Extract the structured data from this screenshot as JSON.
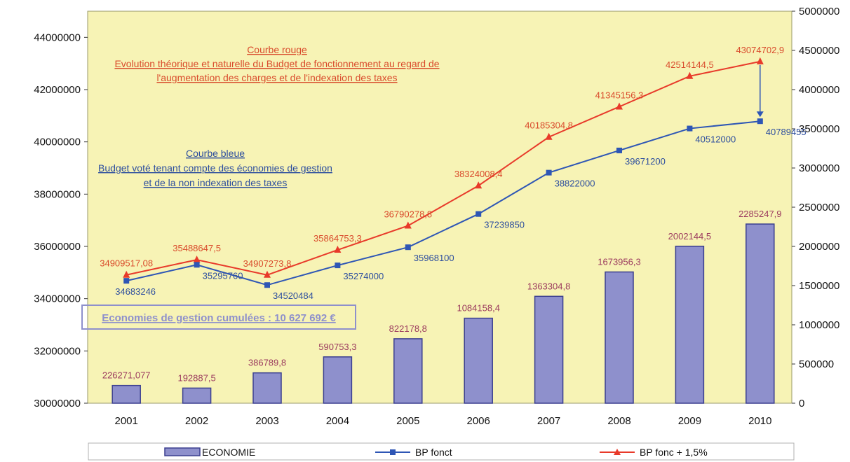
{
  "colors": {
    "plot_bg": "#f7f3b5",
    "bar_fill": "#8e90cc",
    "bar_stroke": "#3b3f8f",
    "blue_line": "#2e56b5",
    "red_line": "#e83a2a",
    "red_text": "#d94b2c",
    "bar_label": "#9b3a5e",
    "blue_label": "#2d4e9e",
    "annotation_box": "#8e90cc"
  },
  "annotations": {
    "red_title": "Courbe rouge",
    "red_line1": "Evolution théorique et naturelle du Budget de fonctionnement au regard de",
    "red_line2": "l'augmentation des charges et de l'indexation des taxes",
    "blue_title": "Courbe bleue",
    "blue_line1": "Budget voté tenant compte des économies de gestion",
    "blue_line2": "et de la non indexation des taxes",
    "box_text": "Economies de gestion cumulées : 10 627 692 €"
  },
  "chart_data": {
    "type": "bar",
    "categories": [
      "2001",
      "2002",
      "2003",
      "2004",
      "2005",
      "2006",
      "2007",
      "2008",
      "2009",
      "2010"
    ],
    "left_axis": {
      "range": [
        30000000,
        45000000
      ],
      "ticks": [
        "30000000",
        "32000000",
        "34000000",
        "36000000",
        "38000000",
        "40000000",
        "42000000",
        "44000000"
      ]
    },
    "right_axis": {
      "range": [
        0,
        5000000
      ],
      "ticks": [
        "0",
        "500000",
        "1000000",
        "1500000",
        "2000000",
        "2500000",
        "3000000",
        "3500000",
        "4000000",
        "4500000",
        "5000000"
      ]
    },
    "series": [
      {
        "name": "ECONOMIE",
        "type": "bar",
        "axis": "right",
        "values": [
          226271.077,
          192887.5,
          386789.8,
          590753.3,
          822178.8,
          1084158.4,
          1363304.8,
          1673956.3,
          2002144.5,
          2285247.9
        ],
        "labels": [
          "226271,077",
          "192887,5",
          "386789,8",
          "590753,3",
          "822178,8",
          "1084158,4",
          "1363304,8",
          "1673956,3",
          "2002144,5",
          "2285247,9"
        ]
      },
      {
        "name": "BP fonct",
        "type": "line",
        "axis": "left",
        "marker": "square",
        "values": [
          34683246,
          35295760,
          34520484,
          35274000,
          35968100,
          37239850,
          38822000,
          39671200,
          40512000,
          40789455
        ],
        "labels": [
          "34683246",
          "35295760",
          "34520484",
          "35274000",
          "35968100",
          "37239850",
          "38822000",
          "39671200",
          "40512000",
          "40789455"
        ]
      },
      {
        "name": "BP fonc + 1,5%",
        "type": "line",
        "axis": "left",
        "marker": "triangle",
        "values": [
          34909517.08,
          35488647.5,
          34907273.8,
          35864753.3,
          36790278.8,
          38324008.4,
          40185304.8,
          41345156.3,
          42514144.5,
          43074702.9
        ],
        "labels": [
          "34909517,08",
          "35488647,5",
          "34907273,8",
          "35864753,3",
          "36790278,8",
          "38324008,4",
          "40185304,8",
          "41345156,3",
          "42514144,5",
          "43074702,9"
        ]
      }
    ],
    "legend": "bottom",
    "grid": false
  }
}
